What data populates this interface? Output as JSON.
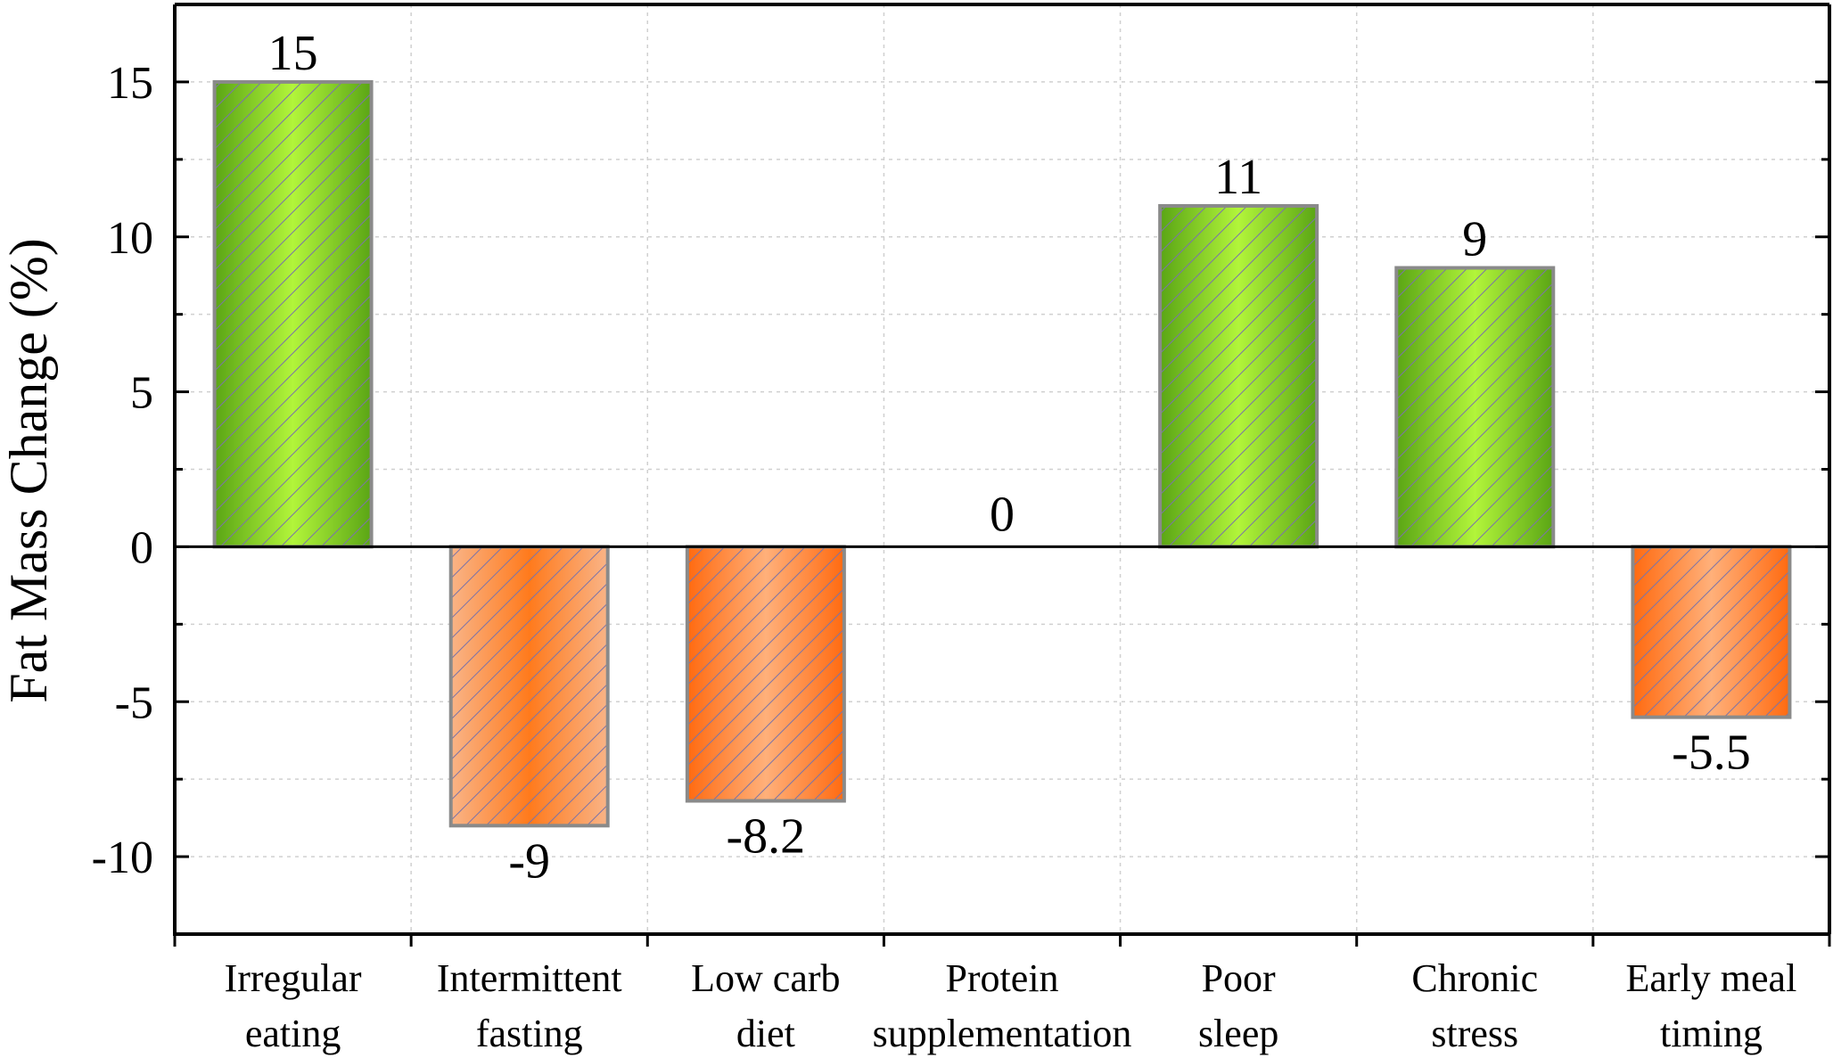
{
  "chart_data": {
    "type": "bar",
    "title": "",
    "xlabel": "",
    "ylabel": "Fat Mass Change (%)",
    "ylim": [
      -12.5,
      17.5
    ],
    "yticks": [
      -10,
      -5,
      0,
      5,
      10,
      15
    ],
    "grid": true,
    "categories": [
      [
        "Irregular",
        "eating"
      ],
      [
        "Intermittent",
        "fasting"
      ],
      [
        "Low carb",
        "diet"
      ],
      [
        "Protein",
        "supplementation"
      ],
      [
        "Poor",
        "sleep"
      ],
      [
        "Chronic",
        "stress"
      ],
      [
        "Early meal",
        "timing"
      ]
    ],
    "values": [
      15,
      -9,
      -8.2,
      0,
      11,
      9,
      -5.5
    ],
    "value_labels": [
      "15",
      "-9",
      "-8.2",
      "0",
      "11",
      "9",
      "-5.5"
    ],
    "colors": {
      "positive": "#9ee62a",
      "positive_dark": "#5aa515",
      "negative": "#ff7a1c",
      "negative_light": "#f9b487",
      "hatch": "#7b73a8",
      "bar_border": "#8a8a8a"
    }
  }
}
